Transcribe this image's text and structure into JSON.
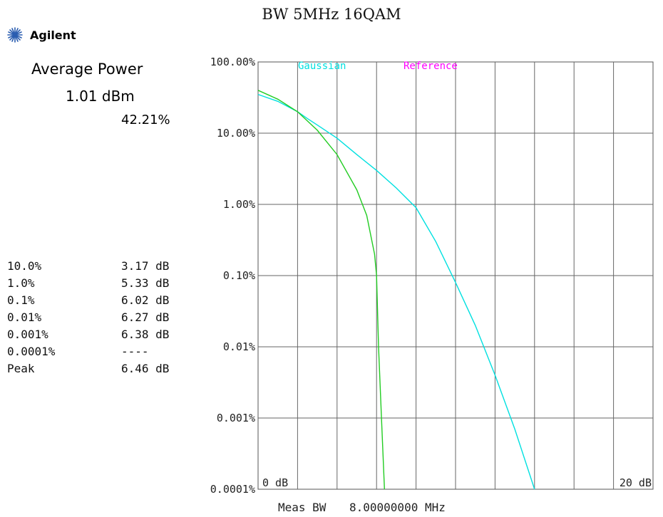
{
  "header": {
    "title": "BW 5MHz 16QAM",
    "brand": "Agilent"
  },
  "summary": {
    "label": "Average Power",
    "value": "1.01 dBm",
    "percent": "42.21%"
  },
  "stats": [
    {
      "label": "10.0%",
      "value": "3.17 dB"
    },
    {
      "label": "1.0%",
      "value": "5.33 dB"
    },
    {
      "label": "0.1%",
      "value": "6.02 dB"
    },
    {
      "label": "0.01%",
      "value": "6.27 dB"
    },
    {
      "label": "0.001%",
      "value": "6.38 dB"
    },
    {
      "label": "0.0001%",
      "value": "----"
    },
    {
      "label": "Peak",
      "value": "6.46 dB"
    }
  ],
  "chart_data": {
    "type": "line",
    "title": "BW 5MHz 16QAM",
    "xlim": [
      0,
      20
    ],
    "x_unit": "dB",
    "x_tick_labels": [
      "0 dB",
      "20 dB"
    ],
    "y_scale": "log",
    "ylim": [
      0.0001,
      100
    ],
    "y_tick_labels": [
      "100.00%",
      "10.00%",
      "1.00%",
      "0.10%",
      "0.01%",
      "0.001%",
      "0.0001%"
    ],
    "grid": true,
    "footer": {
      "label": "Meas BW",
      "value": "8.00000000 MHz"
    },
    "series": [
      {
        "name": "Gaussian",
        "color": "#00e0e0",
        "points": [
          [
            0,
            35
          ],
          [
            1,
            28
          ],
          [
            2,
            20
          ],
          [
            2.5,
            16
          ],
          [
            3,
            13
          ],
          [
            4,
            8.5
          ],
          [
            5,
            5
          ],
          [
            6,
            3
          ],
          [
            7,
            1.7
          ],
          [
            8,
            0.9
          ],
          [
            9,
            0.3
          ],
          [
            10,
            0.08
          ],
          [
            11,
            0.02
          ],
          [
            12,
            0.004
          ],
          [
            13,
            0.0007
          ],
          [
            14,
            0.0001
          ]
        ]
      },
      {
        "name": "Reference",
        "color": "#ff00ff",
        "points": []
      },
      {
        "name": "",
        "color": "#22cc22",
        "points": [
          [
            0,
            40
          ],
          [
            1,
            30
          ],
          [
            2,
            20
          ],
          [
            3,
            11
          ],
          [
            4,
            5
          ],
          [
            5,
            1.6
          ],
          [
            5.5,
            0.7
          ],
          [
            5.9,
            0.2
          ],
          [
            6.0,
            0.1
          ],
          [
            6.1,
            0.01
          ],
          [
            6.25,
            0.001
          ],
          [
            6.4,
            0.0001
          ]
        ]
      }
    ]
  }
}
